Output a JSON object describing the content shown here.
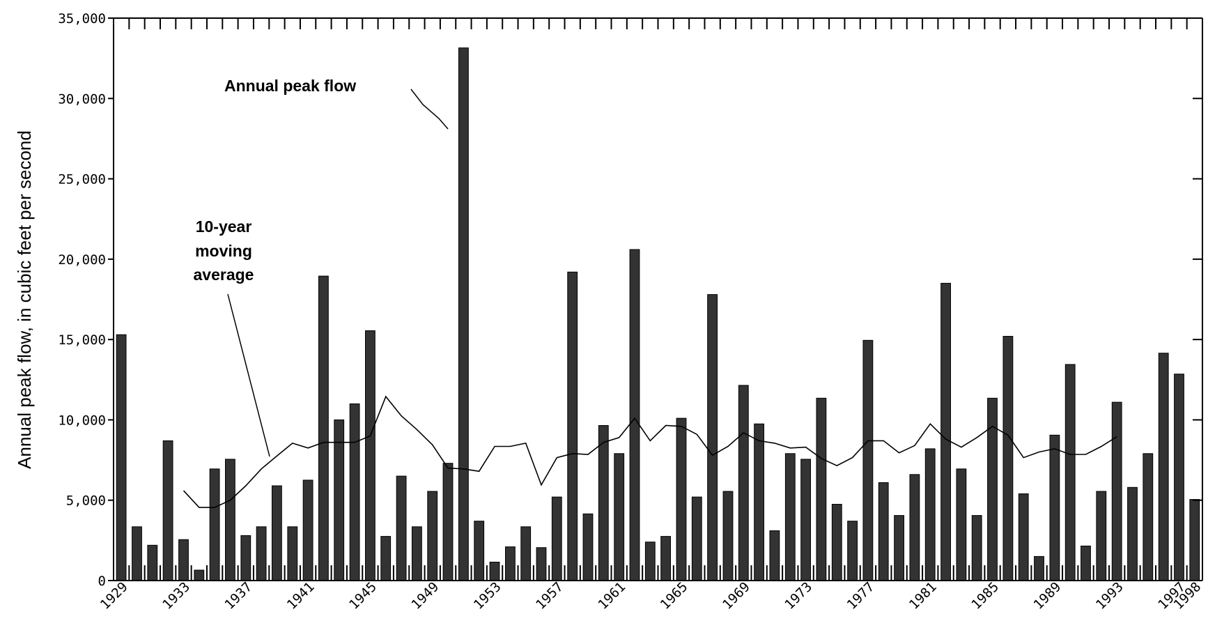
{
  "chart_data": {
    "type": "bar",
    "title": "",
    "ylabel": "Annual peak flow, in cubic feet per second",
    "xlabel": "",
    "ylim": [
      0,
      35000
    ],
    "y_ticks": [
      0,
      5000,
      10000,
      15000,
      20000,
      25000,
      30000,
      35000
    ],
    "y_tick_labels": [
      "0",
      "5,000",
      "10,000",
      "15,000",
      "20,000",
      "25,000",
      "30,000",
      "35,000"
    ],
    "x_tick_labels": [
      "1929",
      "1933",
      "1937",
      "1941",
      "1945",
      "1949",
      "1953",
      "1957",
      "1961",
      "1965",
      "1969",
      "1973",
      "1977",
      "1981",
      "1985",
      "1989",
      "1993",
      "1997",
      "1998"
    ],
    "grid": false,
    "colors": {
      "bar": "#333333",
      "line": "#000000"
    },
    "years": [
      1929,
      1930,
      1931,
      1932,
      1933,
      1934,
      1935,
      1936,
      1937,
      1938,
      1939,
      1940,
      1941,
      1942,
      1943,
      1944,
      1945,
      1946,
      1947,
      1948,
      1949,
      1950,
      1951,
      1952,
      1953,
      1954,
      1955,
      1956,
      1957,
      1958,
      1959,
      1960,
      1961,
      1962,
      1963,
      1964,
      1965,
      1966,
      1967,
      1968,
      1969,
      1970,
      1971,
      1972,
      1973,
      1974,
      1975,
      1976,
      1977,
      1978,
      1979,
      1980,
      1981,
      1982,
      1983,
      1984,
      1985,
      1986,
      1987,
      1988,
      1989,
      1990,
      1991,
      1992,
      1993,
      1994,
      1995,
      1996,
      1997,
      1998
    ],
    "series": [
      {
        "kind": "bar",
        "values": [
          15300,
          3350,
          2200,
          8700,
          2550,
          650,
          6950,
          7550,
          2800,
          3350,
          5900,
          3350,
          6250,
          18950,
          10000,
          11000,
          15550,
          2750,
          6500,
          3350,
          5550,
          7300,
          33150,
          3700,
          1150,
          2100,
          3350,
          2050,
          5200,
          19200,
          4150,
          9650,
          7900,
          20600,
          2400,
          2750,
          10100,
          5200,
          17800,
          5550,
          12150,
          9750,
          3100,
          7900,
          7550,
          11350,
          4750,
          3700,
          14950,
          6100,
          4050,
          6600,
          8200,
          18500,
          6950,
          4050,
          11350,
          15200,
          5400,
          1500,
          9050,
          13450,
          2150,
          5550,
          11100,
          5800,
          7900,
          14150,
          12850,
          5050
        ]
      },
      {
        "kind": "line",
        "x_start": 1933,
        "values": [
          5600,
          4550,
          4550,
          5000,
          5900,
          6950,
          7750,
          8550,
          8250,
          8600,
          8600,
          8600,
          9000,
          11450,
          10250,
          9400,
          8450,
          7000,
          6950,
          6800,
          8350,
          8350,
          8550,
          5950,
          7650,
          7900,
          7850,
          8600,
          8900,
          10100,
          8700,
          9650,
          9600,
          9100,
          7800,
          8350,
          9200,
          8700,
          8550,
          8250,
          8300,
          7600,
          7150,
          7650,
          8700,
          8700,
          7950,
          8400,
          9750,
          8800,
          8300,
          8900,
          9600,
          9050,
          7650,
          8000,
          8200,
          7850,
          7850,
          8350,
          8950
        ]
      }
    ],
    "annotations": [
      {
        "text": "Annual peak flow"
      },
      {
        "lines": [
          "10-year",
          "moving",
          "average"
        ]
      }
    ]
  }
}
